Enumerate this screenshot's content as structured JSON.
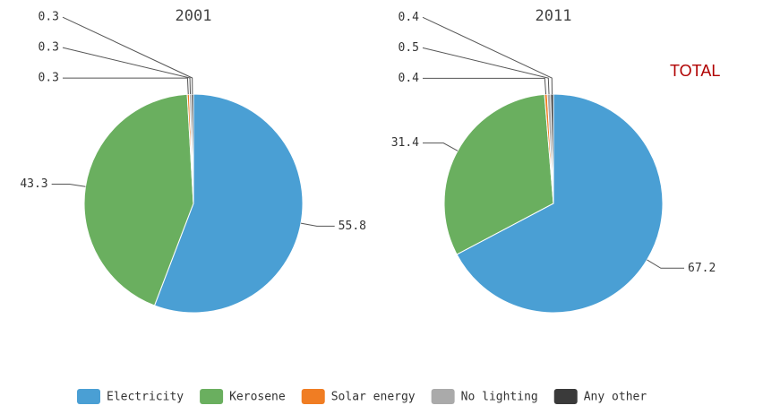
{
  "note_label": "TOTAL",
  "chart_data": [
    {
      "type": "pie",
      "title": "2001",
      "categories": [
        "Electricity",
        "Kerosene",
        "Solar energy",
        "No lighting",
        "Any other"
      ],
      "values": [
        55.8,
        43.3,
        0.3,
        0.3,
        0.3
      ],
      "colors": [
        "#4a9fd4",
        "#6aaf5f",
        "#f07d23",
        "#aaaaaa",
        "#3a3a3a"
      ]
    },
    {
      "type": "pie",
      "title": "2011",
      "categories": [
        "Electricity",
        "Kerosene",
        "Solar energy",
        "No lighting",
        "Any other"
      ],
      "values": [
        67.2,
        31.4,
        0.4,
        0.5,
        0.4
      ],
      "colors": [
        "#4a9fd4",
        "#6aaf5f",
        "#f07d23",
        "#aaaaaa",
        "#3a3a3a"
      ]
    }
  ]
}
